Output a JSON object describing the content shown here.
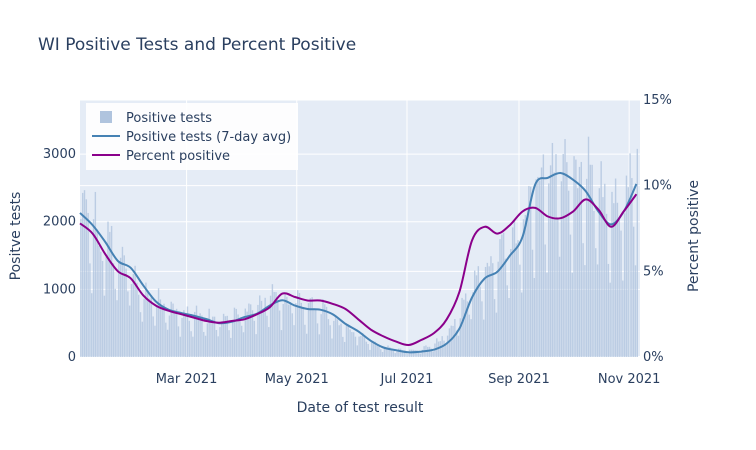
{
  "chart_data": {
    "type": "bar+line",
    "title": "WI Positive Tests and Percent Positive",
    "xlabel": "Date of test result",
    "ylabel_left": "Positve tests",
    "ylabel_right": "Percent positive",
    "x_range": [
      "2021-01-01",
      "2021-11-07"
    ],
    "x_ticks": [
      {
        "date": "2021-03-01",
        "label": "Mar 2021"
      },
      {
        "date": "2021-05-01",
        "label": "May 2021"
      },
      {
        "date": "2021-07-01",
        "label": "Jul 2021"
      },
      {
        "date": "2021-09-01",
        "label": "Sep 2021"
      },
      {
        "date": "2021-11-01",
        "label": "Nov 2021"
      }
    ],
    "y_left": {
      "range": [
        0,
        3800
      ],
      "ticks": [
        0,
        1000,
        2000,
        3000
      ]
    },
    "y_right": {
      "range": [
        0,
        0.15
      ],
      "ticks": [
        0,
        0.05,
        0.1,
        0.15
      ],
      "tick_labels": [
        "0%",
        "5%",
        "10%",
        "15%"
      ]
    },
    "legend": {
      "position": "top-left",
      "entries": [
        "Positive tests",
        "Positive tests (7-day avg)",
        "Percent positive"
      ]
    },
    "colors": {
      "bars": "#b0c4de",
      "avg_line": "#4682b4",
      "pct_line": "#8b008b",
      "plot_bg": "#e5ecf6",
      "text": "#2a3f5f"
    },
    "grid": true,
    "series": [
      {
        "name": "Positive tests",
        "type": "bar",
        "axis": "left",
        "interpolated_from_weekly_estimates": true,
        "points": [
          [
            "2021-01-01",
            2000
          ],
          [
            "2021-01-08",
            1800
          ],
          [
            "2021-01-15",
            1650
          ],
          [
            "2021-01-22",
            1400
          ],
          [
            "2021-01-29",
            1200
          ],
          [
            "2021-02-05",
            900
          ],
          [
            "2021-02-12",
            760
          ],
          [
            "2021-02-19",
            680
          ],
          [
            "2021-02-26",
            620
          ],
          [
            "2021-03-05",
            580
          ],
          [
            "2021-03-12",
            540
          ],
          [
            "2021-03-19",
            490
          ],
          [
            "2021-03-26",
            520
          ],
          [
            "2021-04-02",
            600
          ],
          [
            "2021-04-09",
            680
          ],
          [
            "2021-04-16",
            790
          ],
          [
            "2021-04-23",
            830
          ],
          [
            "2021-04-30",
            760
          ],
          [
            "2021-05-07",
            700
          ],
          [
            "2021-05-14",
            650
          ],
          [
            "2021-05-21",
            520
          ],
          [
            "2021-05-28",
            420
          ],
          [
            "2021-06-04",
            320
          ],
          [
            "2021-06-11",
            200
          ],
          [
            "2021-06-18",
            140
          ],
          [
            "2021-06-25",
            100
          ],
          [
            "2021-07-02",
            90
          ],
          [
            "2021-07-09",
            110
          ],
          [
            "2021-07-16",
            180
          ],
          [
            "2021-07-23",
            330
          ],
          [
            "2021-07-30",
            620
          ],
          [
            "2021-08-06",
            1000
          ],
          [
            "2021-08-13",
            1200
          ],
          [
            "2021-08-20",
            1350
          ],
          [
            "2021-08-27",
            1600
          ],
          [
            "2021-09-03",
            1800
          ],
          [
            "2021-09-10",
            2500
          ],
          [
            "2021-09-17",
            2650
          ],
          [
            "2021-09-24",
            2700
          ],
          [
            "2021-10-01",
            2600
          ],
          [
            "2021-10-08",
            2400
          ],
          [
            "2021-10-15",
            2200
          ],
          [
            "2021-10-22",
            2050
          ],
          [
            "2021-10-29",
            2350
          ],
          [
            "2021-11-05",
            2650
          ]
        ]
      },
      {
        "name": "Positive tests (7-day avg)",
        "type": "line",
        "axis": "left",
        "points": [
          [
            "2021-01-01",
            2130
          ],
          [
            "2021-01-08",
            1950
          ],
          [
            "2021-01-15",
            1700
          ],
          [
            "2021-01-22",
            1420
          ],
          [
            "2021-01-29",
            1320
          ],
          [
            "2021-02-05",
            1060
          ],
          [
            "2021-02-12",
            820
          ],
          [
            "2021-02-19",
            700
          ],
          [
            "2021-02-26",
            650
          ],
          [
            "2021-03-05",
            610
          ],
          [
            "2021-03-12",
            560
          ],
          [
            "2021-03-19",
            500
          ],
          [
            "2021-03-26",
            520
          ],
          [
            "2021-04-02",
            590
          ],
          [
            "2021-04-09",
            640
          ],
          [
            "2021-04-16",
            760
          ],
          [
            "2021-04-23",
            840
          ],
          [
            "2021-04-30",
            760
          ],
          [
            "2021-05-07",
            710
          ],
          [
            "2021-05-14",
            700
          ],
          [
            "2021-05-21",
            630
          ],
          [
            "2021-05-28",
            490
          ],
          [
            "2021-06-04",
            380
          ],
          [
            "2021-06-11",
            240
          ],
          [
            "2021-06-18",
            140
          ],
          [
            "2021-06-25",
            100
          ],
          [
            "2021-07-02",
            70
          ],
          [
            "2021-07-09",
            80
          ],
          [
            "2021-07-16",
            110
          ],
          [
            "2021-07-23",
            200
          ],
          [
            "2021-07-30",
            420
          ],
          [
            "2021-08-06",
            880
          ],
          [
            "2021-08-13",
            1160
          ],
          [
            "2021-08-20",
            1260
          ],
          [
            "2021-08-27",
            1500
          ],
          [
            "2021-09-03",
            1780
          ],
          [
            "2021-09-10",
            2550
          ],
          [
            "2021-09-17",
            2650
          ],
          [
            "2021-09-24",
            2720
          ],
          [
            "2021-10-01",
            2620
          ],
          [
            "2021-10-08",
            2450
          ],
          [
            "2021-10-15",
            2150
          ],
          [
            "2021-10-22",
            1960
          ],
          [
            "2021-10-29",
            2150
          ],
          [
            "2021-11-05",
            2560
          ]
        ]
      },
      {
        "name": "Percent positive",
        "type": "line",
        "axis": "right",
        "points": [
          [
            "2021-01-01",
            0.078
          ],
          [
            "2021-01-08",
            0.072
          ],
          [
            "2021-01-15",
            0.06
          ],
          [
            "2021-01-22",
            0.05
          ],
          [
            "2021-01-29",
            0.046
          ],
          [
            "2021-02-05",
            0.036
          ],
          [
            "2021-02-12",
            0.03
          ],
          [
            "2021-02-19",
            0.027
          ],
          [
            "2021-02-26",
            0.025
          ],
          [
            "2021-03-05",
            0.023
          ],
          [
            "2021-03-12",
            0.021
          ],
          [
            "2021-03-19",
            0.02
          ],
          [
            "2021-03-26",
            0.021
          ],
          [
            "2021-04-02",
            0.022
          ],
          [
            "2021-04-09",
            0.025
          ],
          [
            "2021-04-16",
            0.029
          ],
          [
            "2021-04-23",
            0.037
          ],
          [
            "2021-04-30",
            0.035
          ],
          [
            "2021-05-07",
            0.033
          ],
          [
            "2021-05-14",
            0.033
          ],
          [
            "2021-05-21",
            0.031
          ],
          [
            "2021-05-28",
            0.028
          ],
          [
            "2021-06-04",
            0.022
          ],
          [
            "2021-06-11",
            0.016
          ],
          [
            "2021-06-18",
            0.012
          ],
          [
            "2021-06-25",
            0.009
          ],
          [
            "2021-07-02",
            0.007
          ],
          [
            "2021-07-09",
            0.01
          ],
          [
            "2021-07-16",
            0.014
          ],
          [
            "2021-07-23",
            0.022
          ],
          [
            "2021-07-30",
            0.038
          ],
          [
            "2021-08-06",
            0.068
          ],
          [
            "2021-08-13",
            0.076
          ],
          [
            "2021-08-20",
            0.072
          ],
          [
            "2021-08-27",
            0.077
          ],
          [
            "2021-09-03",
            0.085
          ],
          [
            "2021-09-10",
            0.087
          ],
          [
            "2021-09-17",
            0.082
          ],
          [
            "2021-09-24",
            0.081
          ],
          [
            "2021-10-01",
            0.085
          ],
          [
            "2021-10-08",
            0.092
          ],
          [
            "2021-10-15",
            0.086
          ],
          [
            "2021-10-22",
            0.076
          ],
          [
            "2021-10-29",
            0.085
          ],
          [
            "2021-11-05",
            0.095
          ]
        ]
      }
    ]
  }
}
